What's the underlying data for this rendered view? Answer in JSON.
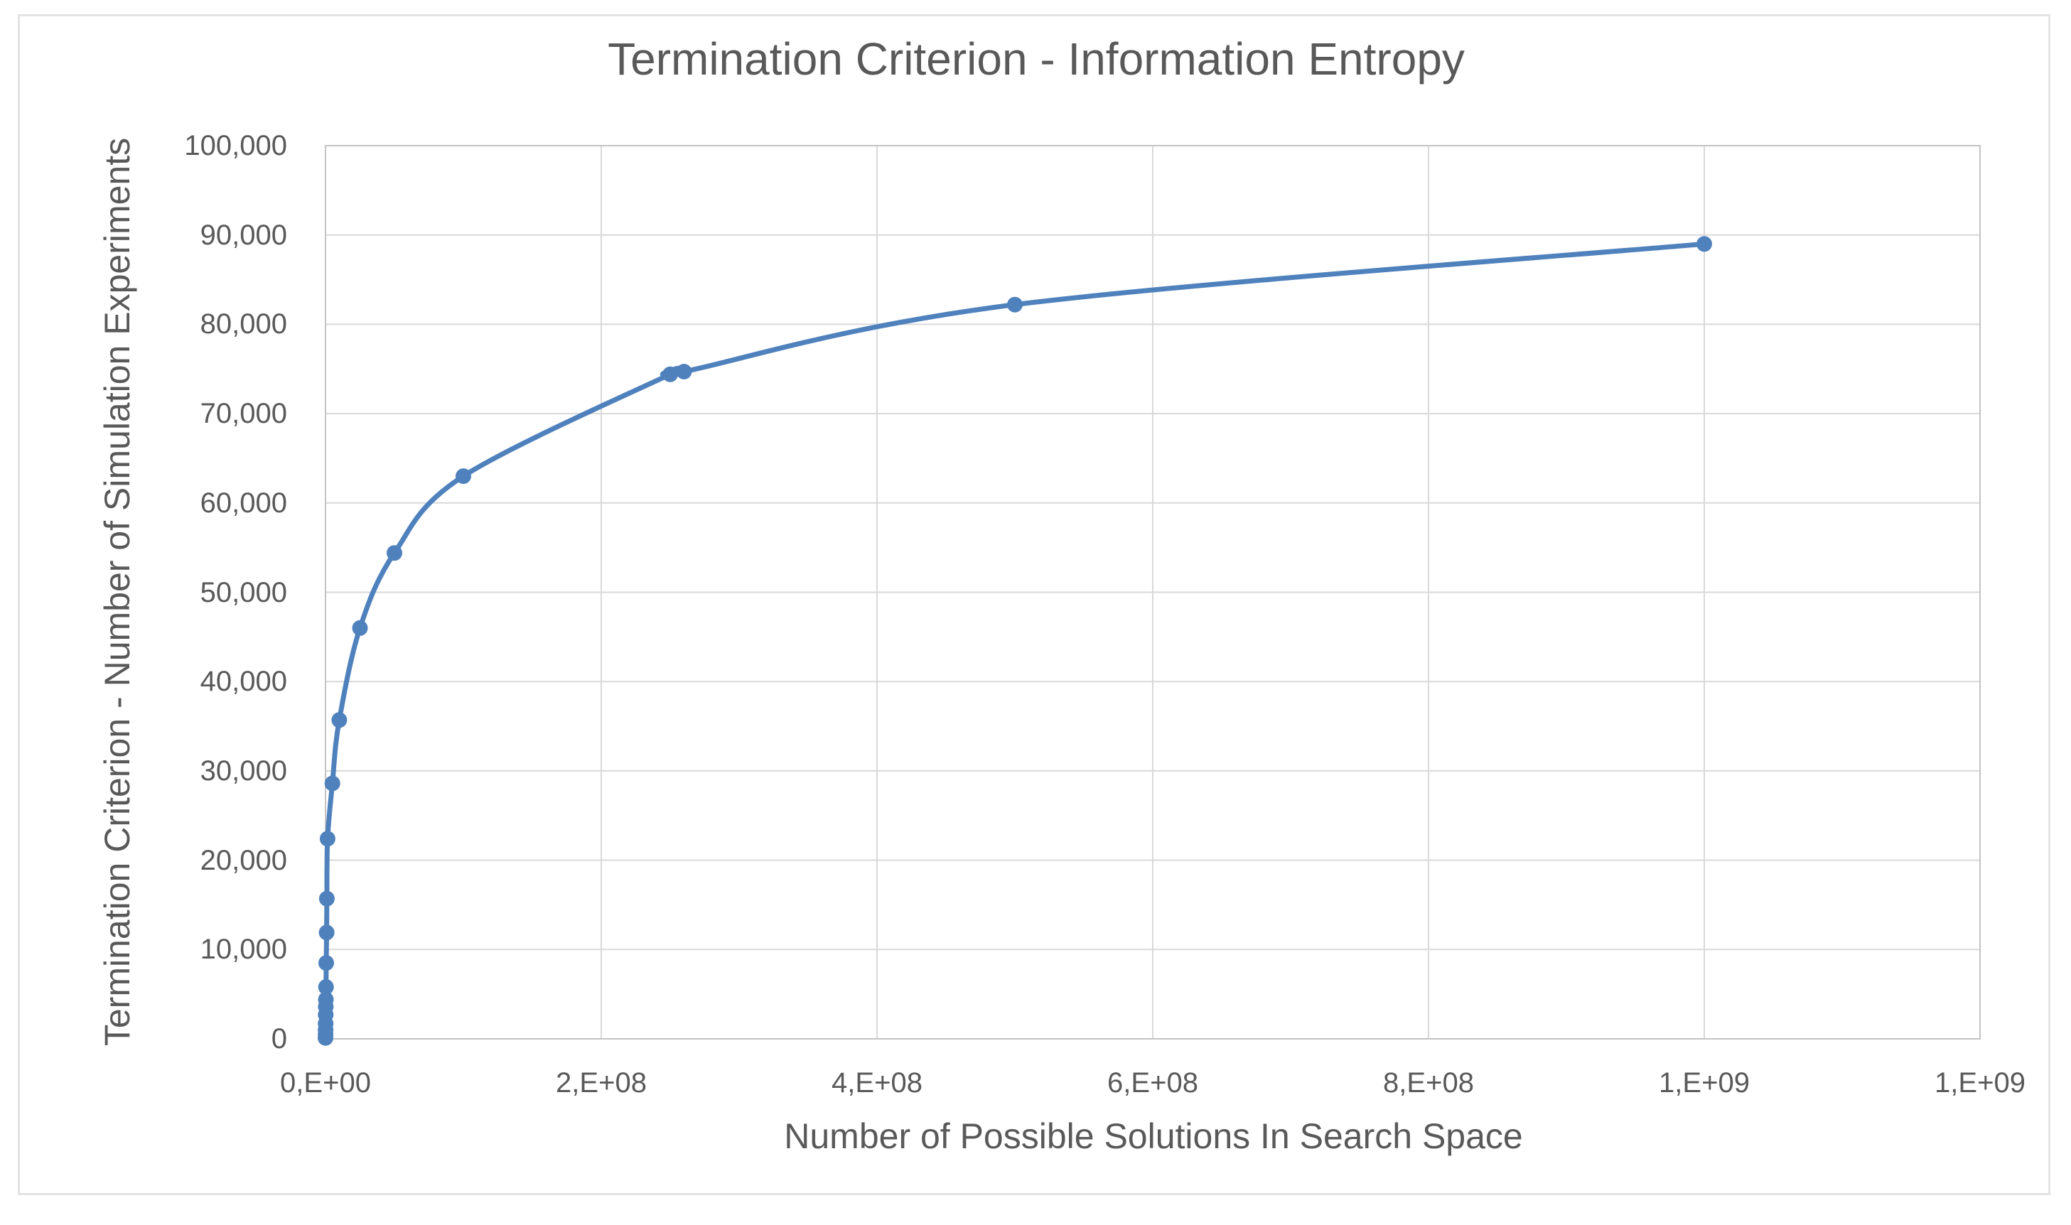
{
  "chart_data": {
    "type": "line",
    "subtype": "scatter-with-smooth-lines-and-markers",
    "title": "Termination Criterion - Information Entropy",
    "xlabel": "Number of Possible Solutions In Search Space",
    "ylabel": "Termination Criterion - Number of Simulation Experiments",
    "legend": "none",
    "grid": true,
    "xlim": [
      0,
      1200000000
    ],
    "ylim": [
      0,
      100000
    ],
    "x_tick_values": [
      0,
      200000000,
      400000000,
      600000000,
      800000000,
      1000000000,
      1200000000
    ],
    "x_tick_labels": [
      "0,E+00",
      "2,E+08",
      "4,E+08",
      "6,E+08",
      "8,E+08",
      "1,E+09",
      "1,E+09"
    ],
    "y_tick_values": [
      0,
      10000,
      20000,
      30000,
      40000,
      50000,
      60000,
      70000,
      80000,
      90000,
      100000
    ],
    "y_tick_labels": [
      "0",
      "10,000",
      "20,000",
      "30,000",
      "40,000",
      "50,000",
      "60,000",
      "70,000",
      "80,000",
      "90,000",
      "100,000"
    ],
    "series": [
      {
        "marker": "circle",
        "smooth": true,
        "points": [
          [
            10000,
            100
          ],
          [
            30000,
            500
          ],
          [
            60000,
            1000
          ],
          [
            100000,
            1700
          ],
          [
            170000,
            2700
          ],
          [
            200000,
            3600
          ],
          [
            250000,
            4400
          ],
          [
            350000,
            5800
          ],
          [
            500000,
            8500
          ],
          [
            800000,
            11900
          ],
          [
            1000000,
            15700
          ],
          [
            1500000,
            22400
          ],
          [
            5000000,
            28600
          ],
          [
            10000000,
            35700
          ],
          [
            25000000,
            46000
          ],
          [
            50000000,
            54400
          ],
          [
            100000000,
            63000
          ],
          [
            250000000,
            74400
          ],
          [
            260000000,
            74700
          ],
          [
            500000000,
            82200
          ],
          [
            1000000000,
            89000
          ]
        ]
      }
    ],
    "colors": {
      "line": "#4F81BD",
      "marker": "#4F81BD",
      "gridline": "#D9D9D9",
      "axis_line": "#C3C3C3",
      "text": "#595959",
      "frame_border": "#E3E3E3",
      "background": "#FFFFFF"
    }
  }
}
